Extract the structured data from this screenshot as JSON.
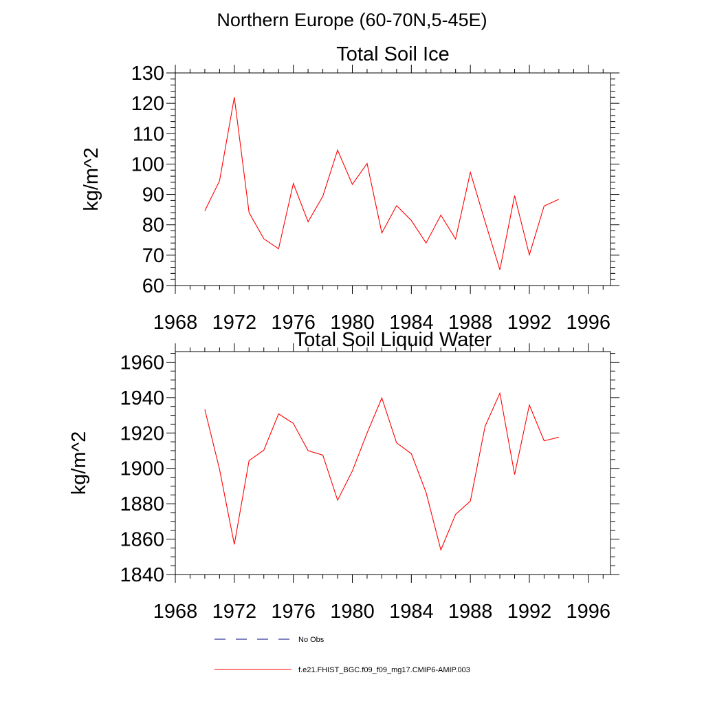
{
  "page_title": "Northern Europe (60-70N,5-45E)",
  "chart_data": [
    {
      "type": "line",
      "title": "Total Soil Ice",
      "xlabel": "",
      "ylabel": "kg/m^2",
      "xlim": [
        1968,
        1997.5
      ],
      "ylim": [
        60,
        130
      ],
      "xticks": [
        1968,
        1972,
        1976,
        1980,
        1984,
        1988,
        1992,
        1996
      ],
      "yticks": [
        60,
        70,
        80,
        90,
        100,
        110,
        120,
        130
      ],
      "grid": false,
      "x": [
        1970,
        1971,
        1972,
        1973,
        1974,
        1975,
        1976,
        1977,
        1978,
        1979,
        1980,
        1981,
        1982,
        1983,
        1984,
        1985,
        1986,
        1987,
        1988,
        1989,
        1990,
        1991,
        1992,
        1993,
        1994
      ],
      "series": [
        {
          "name": "f.e21.FHIST_BGC.f09_f09_mg17.CMIP6-AMIP.003",
          "color": "#ff0000",
          "values": [
            84.6,
            94.5,
            122.0,
            84.0,
            75.4,
            72.1,
            93.6,
            81.0,
            89.4,
            104.6,
            93.3,
            100.2,
            77.3,
            86.3,
            81.4,
            74.0,
            83.2,
            75.3,
            97.3,
            81.0,
            65.2,
            89.6,
            70.1,
            86.2,
            88.4
          ]
        }
      ]
    },
    {
      "type": "line",
      "title": "Total Soil Liquid Water",
      "xlabel": "",
      "ylabel": "kg/m^2",
      "xlim": [
        1968,
        1997.5
      ],
      "ylim": [
        1840,
        1966
      ],
      "xticks": [
        1968,
        1972,
        1976,
        1980,
        1984,
        1988,
        1992,
        1996
      ],
      "yticks": [
        1840,
        1860,
        1880,
        1900,
        1920,
        1940,
        1960
      ],
      "grid": false,
      "x": [
        1970,
        1971,
        1972,
        1973,
        1974,
        1975,
        1976,
        1977,
        1978,
        1979,
        1980,
        1981,
        1982,
        1983,
        1984,
        1985,
        1986,
        1987,
        1988,
        1989,
        1990,
        1991,
        1992,
        1993,
        1994
      ],
      "series": [
        {
          "name": "f.e21.FHIST_BGC.f09_f09_mg17.CMIP6-AMIP.003",
          "color": "#ff0000",
          "values": [
            1933.3,
            1899.4,
            1857.0,
            1904.4,
            1910.3,
            1930.8,
            1925.4,
            1910.0,
            1907.5,
            1882.0,
            1898.5,
            1920.0,
            1939.8,
            1914.4,
            1908.3,
            1886.3,
            1853.9,
            1874.0,
            1881.5,
            1923.8,
            1942.5,
            1896.5,
            1935.8,
            1915.6,
            1917.6
          ]
        }
      ]
    }
  ],
  "legend": {
    "position": "bottom",
    "entries": [
      {
        "label": "No Obs",
        "color": "#000080",
        "dash": "dashed"
      },
      {
        "label": "f.e21.FHIST_BGC.f09_f09_mg17.CMIP6-AMIP.003",
        "color": "#ff0000",
        "dash": "solid"
      }
    ]
  }
}
